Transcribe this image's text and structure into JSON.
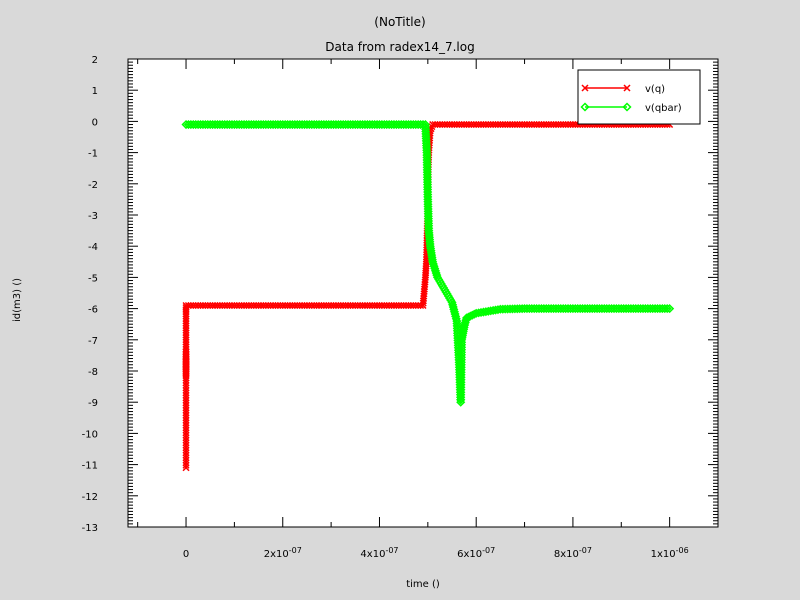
{
  "chart_data": {
    "type": "line",
    "window_title": "(NoTitle)",
    "title": "Data from radex14_7.log",
    "xlabel": "time ()",
    "ylabel": "id(m3) ()",
    "xlim": [
      -1.2e-07,
      1.1e-06
    ],
    "ylim": [
      -13,
      2
    ],
    "x_ticks": [
      {
        "value": 0,
        "label": "0",
        "exp": ""
      },
      {
        "value": 2e-07,
        "label": "2x10",
        "exp": "-07"
      },
      {
        "value": 4e-07,
        "label": "4x10",
        "exp": "-07"
      },
      {
        "value": 6e-07,
        "label": "6x10",
        "exp": "-07"
      },
      {
        "value": 8e-07,
        "label": "8x10",
        "exp": "-07"
      },
      {
        "value": 1e-06,
        "label": "1x10",
        "exp": "-06"
      }
    ],
    "y_ticks": [
      2,
      1,
      0,
      -1,
      -2,
      -3,
      -4,
      -5,
      -6,
      -7,
      -8,
      -9,
      -10,
      -11,
      -12,
      -13
    ],
    "grid": false,
    "legend_position": "top-right",
    "series": [
      {
        "name": "v(q)",
        "color": "#ff0000",
        "marker": "x",
        "points": [
          [
            0,
            -11.1
          ],
          [
            0,
            -8.3
          ],
          [
            0,
            -7.4
          ],
          [
            0,
            -8.1
          ],
          [
            0,
            -7.6
          ],
          [
            0,
            -6.7
          ],
          [
            0,
            -6.1
          ],
          [
            0,
            -5.9
          ],
          [
            5e-08,
            -5.9
          ],
          [
            1e-07,
            -5.9
          ],
          [
            1.5e-07,
            -5.9
          ],
          [
            2e-07,
            -5.9
          ],
          [
            2.5e-07,
            -5.9
          ],
          [
            3e-07,
            -5.9
          ],
          [
            3.5e-07,
            -5.9
          ],
          [
            4e-07,
            -5.9
          ],
          [
            4.5e-07,
            -5.9
          ],
          [
            4.9e-07,
            -5.9
          ],
          [
            4.95e-07,
            -5.0
          ],
          [
            4.97e-07,
            -4.5
          ],
          [
            4.99e-07,
            -3.2
          ],
          [
            5e-07,
            -2.0
          ],
          [
            5.02e-07,
            -1.0
          ],
          [
            5.05e-07,
            -0.3
          ],
          [
            5.1e-07,
            -0.1
          ],
          [
            6e-07,
            -0.1
          ],
          [
            7e-07,
            -0.1
          ],
          [
            8e-07,
            -0.1
          ],
          [
            9e-07,
            -0.1
          ],
          [
            1e-06,
            -0.1
          ]
        ]
      },
      {
        "name": "v(qbar)",
        "color": "#00ff00",
        "marker": "diamond",
        "points": [
          [
            0,
            -0.1
          ],
          [
            5e-08,
            -0.1
          ],
          [
            1e-07,
            -0.1
          ],
          [
            1.5e-07,
            -0.1
          ],
          [
            2e-07,
            -0.1
          ],
          [
            2.5e-07,
            -0.1
          ],
          [
            3e-07,
            -0.1
          ],
          [
            3.5e-07,
            -0.1
          ],
          [
            4e-07,
            -0.1
          ],
          [
            4.5e-07,
            -0.1
          ],
          [
            4.95e-07,
            -0.1
          ],
          [
            4.98e-07,
            -1.0
          ],
          [
            5e-07,
            -2.5
          ],
          [
            5.02e-07,
            -3.5
          ],
          [
            5.05e-07,
            -4.0
          ],
          [
            5.1e-07,
            -4.5
          ],
          [
            5.2e-07,
            -5.0
          ],
          [
            5.35e-07,
            -5.4
          ],
          [
            5.5e-07,
            -5.8
          ],
          [
            5.6e-07,
            -6.4
          ],
          [
            5.65e-07,
            -7.8
          ],
          [
            5.68e-07,
            -9.0
          ],
          [
            5.7e-07,
            -7.0
          ],
          [
            5.75e-07,
            -6.6
          ],
          [
            5.8e-07,
            -6.3
          ],
          [
            6e-07,
            -6.15
          ],
          [
            6.5e-07,
            -6.02
          ],
          [
            7e-07,
            -6.0
          ],
          [
            8e-07,
            -6.0
          ],
          [
            9e-07,
            -6.0
          ],
          [
            1e-06,
            -6.0
          ]
        ]
      }
    ]
  }
}
